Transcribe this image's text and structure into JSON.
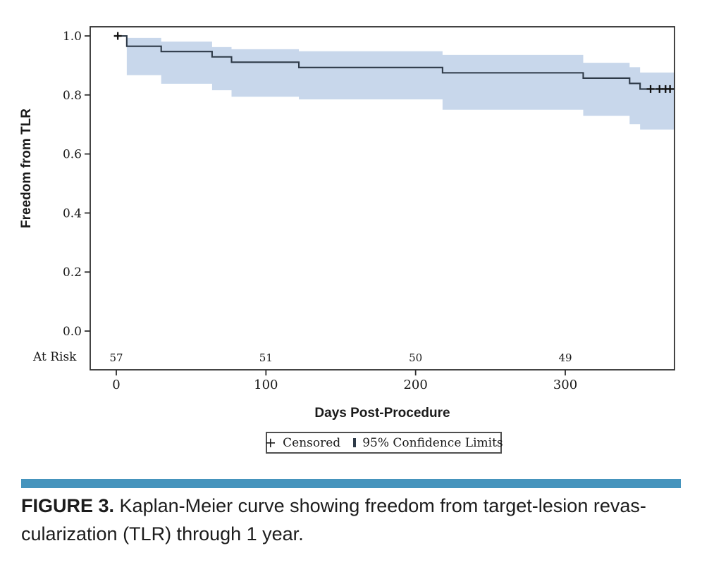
{
  "figure": {
    "caption_label": "FIGURE 3.",
    "caption_line1": "Kaplan-Meier curve showing freedom from target-lesion revas-",
    "caption_line2": "cularization (TLR) through 1 year."
  },
  "chart_data": {
    "type": "line",
    "subtype": "kaplan_meier_step",
    "title": "",
    "ylabel": "Freedom from TLR",
    "xlabel": "Days Post-Procedure",
    "at_risk_label": "At Risk",
    "xlim": [
      0,
      373
    ],
    "ylim": [
      0.0,
      1.0
    ],
    "xticks": [
      0,
      100,
      200,
      300
    ],
    "yticks": [
      1.0,
      0.8,
      0.6,
      0.4,
      0.2,
      0.0
    ],
    "grid": false,
    "legend_position": "bottom",
    "at_risk": [
      {
        "day": 0,
        "n": "57"
      },
      {
        "day": 100,
        "n": "51"
      },
      {
        "day": 200,
        "n": "50"
      },
      {
        "day": 300,
        "n": "49"
      }
    ],
    "series": [
      {
        "name": "Freedom from TLR",
        "steps": [
          [
            0,
            1.0
          ],
          [
            7,
            0.965
          ],
          [
            30,
            0.947
          ],
          [
            64,
            0.929
          ],
          [
            77,
            0.911
          ],
          [
            122,
            0.893
          ],
          [
            218,
            0.875
          ],
          [
            312,
            0.857
          ],
          [
            343,
            0.839
          ],
          [
            350,
            0.82
          ],
          [
            373,
            0.82
          ]
        ]
      }
    ],
    "censored": [
      [
        1,
        1.0
      ],
      [
        357,
        0.82
      ],
      [
        363,
        0.82
      ],
      [
        367,
        0.82
      ],
      [
        370,
        0.82
      ]
    ],
    "confidence_band": [
      {
        "x0": 7,
        "x1": 30,
        "upper": 0.993,
        "lower": 0.867
      },
      {
        "x0": 30,
        "x1": 64,
        "upper": 0.981,
        "lower": 0.838
      },
      {
        "x0": 64,
        "x1": 77,
        "upper": 0.962,
        "lower": 0.816
      },
      {
        "x0": 77,
        "x1": 122,
        "upper": 0.955,
        "lower": 0.794
      },
      {
        "x0": 122,
        "x1": 218,
        "upper": 0.948,
        "lower": 0.785
      },
      {
        "x0": 218,
        "x1": 312,
        "upper": 0.936,
        "lower": 0.75
      },
      {
        "x0": 312,
        "x1": 343,
        "upper": 0.909,
        "lower": 0.729
      },
      {
        "x0": 343,
        "x1": 350,
        "upper": 0.894,
        "lower": 0.701
      },
      {
        "x0": 350,
        "x1": 373,
        "upper": 0.876,
        "lower": 0.683
      }
    ],
    "legend": [
      {
        "marker": "plus",
        "label": "Censored"
      },
      {
        "marker": "square",
        "label": "95% Confidence Limits"
      }
    ],
    "colors": {
      "band": "#c8d7eb",
      "line": "#2e3a48",
      "censor": "#111111",
      "frame": "#2f2f2f",
      "text": "#1a1a1a",
      "divider": "#4594bd"
    }
  }
}
